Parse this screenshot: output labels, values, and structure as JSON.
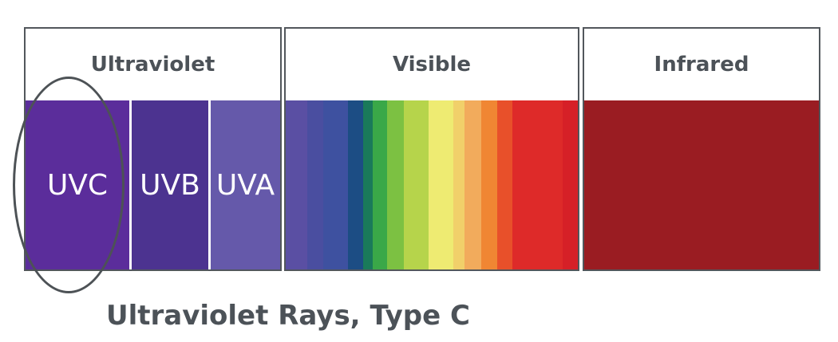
{
  "boxes": {
    "ultraviolet": {
      "title": "Ultraviolet",
      "bands": [
        {
          "label": "UVC",
          "color": "#5b2d9b"
        },
        {
          "label": "UVB",
          "color": "#4c3390"
        },
        {
          "label": "UVA",
          "color": "#6559aa"
        }
      ]
    },
    "visible": {
      "title": "Visible",
      "stripes": [
        "#5a4fa3",
        "#4a4ea0",
        "#3e51a0",
        "#1c4d84",
        "#1a7a5a",
        "#3aa848",
        "#7cc142",
        "#b6d44b",
        "#eeeb72",
        "#f1d06a",
        "#f2ab5c",
        "#f08633",
        "#e8502a",
        "#de2a29",
        "#d62027"
      ]
    },
    "infrared": {
      "title": "Infrared",
      "color": "#9a1c22"
    }
  },
  "caption": "Ultraviolet Rays, Type C",
  "colors": {
    "border": "#52575c",
    "text": "#4c5258"
  }
}
